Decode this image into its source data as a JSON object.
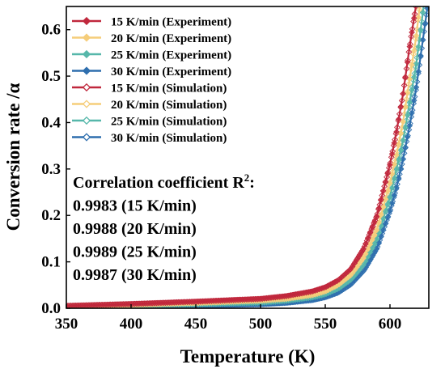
{
  "chart_data": {
    "type": "line",
    "xlabel": "Temperature (K)",
    "ylabel": "Conversion rate /α",
    "xlim": [
      350,
      630
    ],
    "ylim": [
      0,
      0.65
    ],
    "x_ticks": [
      350,
      400,
      450,
      500,
      550,
      600
    ],
    "y_ticks": [
      0.0,
      0.1,
      0.2,
      0.3,
      0.4,
      0.5,
      0.6
    ],
    "x_tick_labels": [
      "350",
      "400",
      "450",
      "500",
      "550",
      "600"
    ],
    "y_tick_labels": [
      "0.0",
      "0.1",
      "0.2",
      "0.3",
      "0.4",
      "0.5",
      "0.6"
    ],
    "grid": false,
    "legend_position": "top-left",
    "series": [
      {
        "name": "15 K/min (Experiment)",
        "color": "#c0283d",
        "marker": "filled-diamond",
        "x": [
          350,
          400,
          450,
          500,
          520,
          540,
          550,
          560,
          570,
          580,
          590,
          600,
          605,
          610,
          615,
          620
        ],
        "y": [
          0.005,
          0.009,
          0.014,
          0.02,
          0.026,
          0.036,
          0.045,
          0.06,
          0.085,
          0.13,
          0.2,
          0.31,
          0.38,
          0.46,
          0.56,
          0.65
        ]
      },
      {
        "name": "20 K/min (Experiment)",
        "color": "#f5cd7a",
        "marker": "filled-diamond",
        "x": [
          350,
          400,
          450,
          500,
          520,
          540,
          550,
          560,
          570,
          580,
          590,
          600,
          605,
          610,
          615,
          620,
          623
        ],
        "y": [
          0.004,
          0.007,
          0.011,
          0.016,
          0.02,
          0.028,
          0.036,
          0.05,
          0.072,
          0.11,
          0.17,
          0.27,
          0.33,
          0.4,
          0.49,
          0.58,
          0.65
        ]
      },
      {
        "name": "25 K/min (Experiment)",
        "color": "#56b7aa",
        "marker": "filled-diamond",
        "x": [
          350,
          400,
          450,
          500,
          520,
          540,
          550,
          560,
          570,
          580,
          590,
          600,
          605,
          610,
          615,
          620,
          626
        ],
        "y": [
          0.003,
          0.005,
          0.008,
          0.012,
          0.016,
          0.023,
          0.03,
          0.042,
          0.062,
          0.095,
          0.15,
          0.24,
          0.3,
          0.36,
          0.44,
          0.52,
          0.65
        ]
      },
      {
        "name": "30 K/min (Experiment)",
        "color": "#2f6fae",
        "marker": "filled-diamond",
        "x": [
          350,
          400,
          450,
          500,
          520,
          540,
          550,
          560,
          570,
          580,
          590,
          600,
          605,
          610,
          615,
          620,
          629
        ],
        "y": [
          0.002,
          0.004,
          0.006,
          0.009,
          0.012,
          0.018,
          0.024,
          0.034,
          0.052,
          0.082,
          0.13,
          0.21,
          0.26,
          0.32,
          0.39,
          0.47,
          0.65
        ]
      },
      {
        "name": "15 K/min (Simulation)",
        "color": "#c0283d",
        "marker": "open-diamond",
        "x": [
          350,
          400,
          450,
          500,
          520,
          540,
          550,
          560,
          570,
          580,
          590,
          600,
          605,
          610,
          615,
          620
        ],
        "y": [
          0.005,
          0.009,
          0.014,
          0.02,
          0.026,
          0.036,
          0.045,
          0.06,
          0.085,
          0.13,
          0.2,
          0.31,
          0.38,
          0.46,
          0.56,
          0.65
        ]
      },
      {
        "name": "20 K/min (Simulation)",
        "color": "#f5cd7a",
        "marker": "open-diamond",
        "x": [
          350,
          400,
          450,
          500,
          520,
          540,
          550,
          560,
          570,
          580,
          590,
          600,
          605,
          610,
          615,
          620,
          623
        ],
        "y": [
          0.004,
          0.007,
          0.011,
          0.016,
          0.02,
          0.028,
          0.036,
          0.05,
          0.072,
          0.11,
          0.17,
          0.27,
          0.33,
          0.4,
          0.49,
          0.58,
          0.65
        ]
      },
      {
        "name": "25 K/min (Simulation)",
        "color": "#56b7aa",
        "marker": "open-diamond",
        "x": [
          350,
          400,
          450,
          500,
          520,
          540,
          550,
          560,
          570,
          580,
          590,
          600,
          605,
          610,
          615,
          620,
          626
        ],
        "y": [
          0.003,
          0.005,
          0.008,
          0.012,
          0.016,
          0.023,
          0.03,
          0.042,
          0.062,
          0.095,
          0.15,
          0.24,
          0.3,
          0.36,
          0.44,
          0.52,
          0.65
        ]
      },
      {
        "name": "30 K/min (Simulation)",
        "color": "#2f6fae",
        "marker": "open-diamond",
        "x": [
          350,
          400,
          450,
          500,
          520,
          540,
          550,
          560,
          570,
          580,
          590,
          600,
          605,
          610,
          615,
          620,
          629
        ],
        "y": [
          0.002,
          0.004,
          0.006,
          0.009,
          0.012,
          0.018,
          0.024,
          0.034,
          0.052,
          0.082,
          0.13,
          0.21,
          0.26,
          0.32,
          0.39,
          0.47,
          0.65
        ]
      }
    ],
    "annotations": [
      "Correlation coefficient R²:",
      "0.9983 (15 K/min)",
      "0.9988 (20 K/min)",
      "0.9989 (25 K/min)",
      "0.9987 (30 K/min)"
    ]
  }
}
